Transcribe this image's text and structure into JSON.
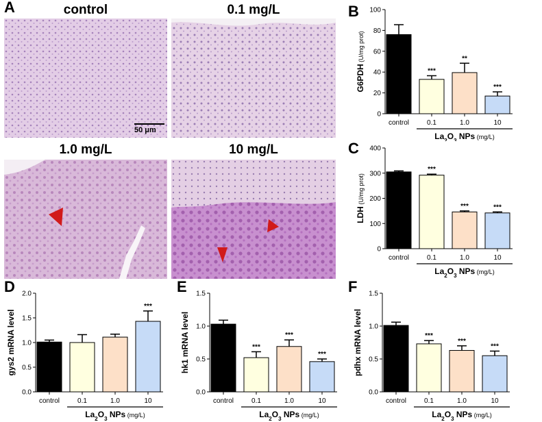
{
  "figure": {
    "panel_letters": [
      "A",
      "B",
      "C",
      "D",
      "E",
      "F"
    ],
    "micrographs": [
      {
        "title": "control"
      },
      {
        "title": "0.1 mg/L"
      },
      {
        "title": "1.0 mg/L"
      },
      {
        "title": "10 mg/L"
      }
    ],
    "scale_bar": "50 μm"
  },
  "colors": {
    "control": "#000000",
    "dose_0_1": "#ffffe0",
    "dose_1_0": "#fde0c8",
    "dose_10": "#c6dbf7",
    "arrow": "#d11a1a"
  },
  "chart_data": [
    {
      "panel": "B",
      "type": "bar",
      "ylabel_main": "G6PDH",
      "ylabel_unit": " (U/mg prot)",
      "categories": [
        "control",
        "0.1",
        "1.0",
        "10"
      ],
      "values": [
        76,
        33,
        39.5,
        17
      ],
      "errors": [
        9.5,
        3.5,
        9,
        4
      ],
      "significance": [
        "",
        "***",
        "**",
        "***"
      ],
      "yticks": [
        0,
        20,
        40,
        60,
        80,
        100
      ],
      "ylim": [
        0,
        100
      ],
      "group_label_parts": [
        "La",
        "2",
        "O",
        "3",
        " NPs",
        " (mg/L)"
      ]
    },
    {
      "panel": "C",
      "type": "bar",
      "ylabel_main": "LDH",
      "ylabel_unit": " (U/mg prot)",
      "categories": [
        "control",
        "0.1",
        "1.0",
        "10"
      ],
      "values": [
        305,
        292,
        146,
        142
      ],
      "errors": [
        4,
        4,
        4,
        4
      ],
      "significance": [
        "",
        "***",
        "***",
        "***"
      ],
      "yticks": [
        0,
        100,
        200,
        300,
        400
      ],
      "ylim": [
        0,
        400
      ],
      "group_label_parts": [
        "La",
        "2",
        "O",
        "3",
        " NPs",
        " (mg/L)"
      ]
    },
    {
      "panel": "D",
      "type": "bar",
      "ylabel_main": "gys2 mRNA level",
      "ylabel_unit": "",
      "categories": [
        "control",
        "0.1",
        "1.0",
        "10"
      ],
      "values": [
        1.01,
        1.0,
        1.11,
        1.43
      ],
      "errors": [
        0.04,
        0.16,
        0.06,
        0.21
      ],
      "significance": [
        "",
        "",
        "",
        "***"
      ],
      "yticks": [
        "0.0",
        "0.5",
        "1.0",
        "1.5",
        "2.0"
      ],
      "ylim": [
        0,
        2
      ],
      "group_label_parts": [
        "La",
        "2",
        "O",
        "3",
        " NPs",
        " (mg/L)"
      ]
    },
    {
      "panel": "E",
      "type": "bar",
      "ylabel_main": "hk1 mRNA level",
      "ylabel_unit": "",
      "categories": [
        "control",
        "0.1",
        "1.0",
        "10"
      ],
      "values": [
        1.03,
        0.52,
        0.69,
        0.46
      ],
      "errors": [
        0.06,
        0.09,
        0.1,
        0.04
      ],
      "significance": [
        "",
        "***",
        "***",
        "***"
      ],
      "yticks": [
        "0.0",
        "0.5",
        "1.0",
        "1.5"
      ],
      "ylim": [
        0,
        1.5
      ],
      "group_label_parts": [
        "La",
        "2",
        "O",
        "3",
        " NPs",
        " (mg/L)"
      ]
    },
    {
      "panel": "F",
      "type": "bar",
      "ylabel_main": "pdhx mRNA level",
      "ylabel_unit": "",
      "categories": [
        "control",
        "0.1",
        "1.0",
        "10"
      ],
      "values": [
        1.01,
        0.73,
        0.63,
        0.55
      ],
      "errors": [
        0.05,
        0.05,
        0.07,
        0.07
      ],
      "significance": [
        "",
        "***",
        "***",
        "***"
      ],
      "yticks": [
        "0.0",
        "0.5",
        "1.0",
        "1.5"
      ],
      "ylim": [
        0,
        1.5
      ],
      "group_label_parts": [
        "La",
        "2",
        "O",
        "3",
        " NPs",
        " (mg/L)"
      ]
    }
  ]
}
